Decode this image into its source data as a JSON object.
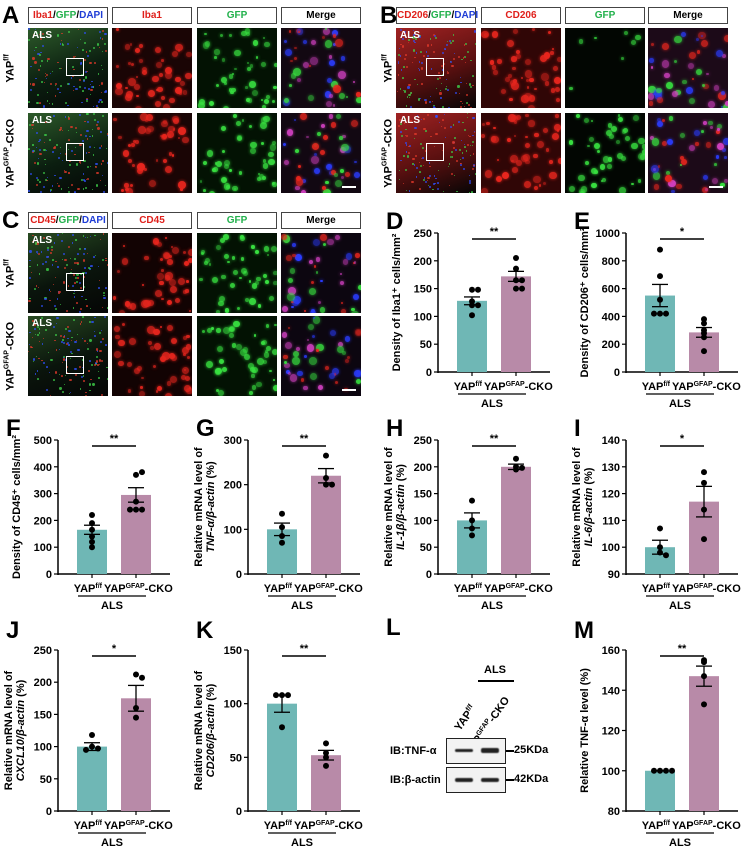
{
  "colors": {
    "wt_bar": "#6fb7b5",
    "ko_bar": "#b88aa8",
    "red": "#e0201b",
    "green": "#22b14c",
    "blue": "#1f3dd6"
  },
  "microscopy": [
    {
      "letter": "A",
      "headers": [
        [
          {
            "t": "Iba1",
            "c": "red"
          },
          {
            "t": "/",
            "c": "k"
          },
          {
            "t": "GFP",
            "c": "green"
          },
          {
            "t": "/",
            "c": "k"
          },
          {
            "t": "DAPI",
            "c": "blue"
          }
        ],
        [
          {
            "t": "Iba1",
            "c": "red"
          }
        ],
        [
          {
            "t": "GFP",
            "c": "green"
          }
        ],
        [
          {
            "t": "Merge",
            "c": "k"
          }
        ]
      ],
      "rows": [
        {
          "base": "YAP",
          "sup": "f/f",
          "suffix": "",
          "inset": "ALS"
        },
        {
          "base": "YAP",
          "sup": "GFAP",
          "suffix": "-CKO",
          "inset": "ALS"
        }
      ]
    },
    {
      "letter": "B",
      "headers": [
        [
          {
            "t": "CD206",
            "c": "red"
          },
          {
            "t": "/",
            "c": "k"
          },
          {
            "t": "GFP",
            "c": "green"
          },
          {
            "t": "/",
            "c": "k"
          },
          {
            "t": "DAPI",
            "c": "blue"
          }
        ],
        [
          {
            "t": "CD206",
            "c": "red"
          }
        ],
        [
          {
            "t": "GFP",
            "c": "green"
          }
        ],
        [
          {
            "t": "Merge",
            "c": "k"
          }
        ]
      ],
      "rows": [
        {
          "base": "YAP",
          "sup": "f/f",
          "suffix": "",
          "inset": "ALS"
        },
        {
          "base": "YAP",
          "sup": "GFAP",
          "suffix": "-CKO",
          "inset": "ALS"
        }
      ]
    },
    {
      "letter": "C",
      "headers": [
        [
          {
            "t": "CD45",
            "c": "red"
          },
          {
            "t": "/",
            "c": "k"
          },
          {
            "t": "GFP",
            "c": "green"
          },
          {
            "t": "/",
            "c": "k"
          },
          {
            "t": "DAPI",
            "c": "blue"
          }
        ],
        [
          {
            "t": "CD45",
            "c": "red"
          }
        ],
        [
          {
            "t": "GFP",
            "c": "green"
          }
        ],
        [
          {
            "t": "Merge",
            "c": "k"
          }
        ]
      ],
      "rows": [
        {
          "base": "YAP",
          "sup": "f/f",
          "suffix": "",
          "inset": "ALS"
        },
        {
          "base": "YAP",
          "sup": "GFAP",
          "suffix": "-CKO",
          "inset": "ALS"
        }
      ]
    }
  ],
  "chart_data": [
    {
      "letter": "D",
      "type": "bar",
      "ylabel": [
        [
          {
            "t": "Density of Iba1⁺ cells/mm²"
          }
        ]
      ],
      "ylim": [
        0,
        250
      ],
      "yticks": [
        0,
        50,
        100,
        150,
        200,
        250
      ],
      "sig": "**",
      "categories": [
        {
          "base": "YAP",
          "sup": "f/f",
          "suffix": ""
        },
        {
          "base": "YAP",
          "sup": "GFAP",
          "suffix": "-CKO"
        }
      ],
      "group_label": "ALS",
      "series": [
        {
          "mean": 128,
          "sem": 7,
          "points": [
            148,
            148,
            127,
            120,
            120,
            102
          ]
        },
        {
          "mean": 172,
          "sem": 9,
          "points": [
            205,
            186,
            165,
            150,
            150,
            165
          ]
        }
      ]
    },
    {
      "letter": "E",
      "type": "bar",
      "ylabel": [
        [
          {
            "t": "Density of CD206⁺ cells/mm²"
          }
        ]
      ],
      "ylim": [
        0,
        1000
      ],
      "yticks": [
        0,
        200,
        400,
        600,
        800,
        1000
      ],
      "sig": "*",
      "categories": [
        {
          "base": "YAP",
          "sup": "f/f",
          "suffix": ""
        },
        {
          "base": "YAP",
          "sup": "GFAP",
          "suffix": "-CKO"
        }
      ],
      "group_label": "ALS",
      "series": [
        {
          "mean": 550,
          "sem": 80,
          "points": [
            880,
            690,
            520,
            420,
            420,
            420
          ]
        },
        {
          "mean": 285,
          "sem": 35,
          "points": [
            380,
            350,
            300,
            280,
            250,
            150
          ]
        }
      ]
    },
    {
      "letter": "F",
      "type": "bar",
      "ylabel": [
        [
          {
            "t": "Density of CD45⁺ cells/mm²"
          }
        ]
      ],
      "ylim": [
        0,
        500
      ],
      "yticks": [
        0,
        100,
        200,
        300,
        400,
        500
      ],
      "sig": "**",
      "categories": [
        {
          "base": "YAP",
          "sup": "f/f",
          "suffix": ""
        },
        {
          "base": "YAP",
          "sup": "GFAP",
          "suffix": "-CKO"
        }
      ],
      "group_label": "ALS",
      "series": [
        {
          "mean": 165,
          "sem": 17,
          "points": [
            220,
            190,
            165,
            140,
            120,
            100
          ]
        },
        {
          "mean": 295,
          "sem": 27,
          "points": [
            370,
            380,
            270,
            240,
            240,
            240
          ]
        }
      ]
    },
    {
      "letter": "G",
      "type": "bar",
      "ylabel": [
        [
          {
            "t": "Relative mRNA level of"
          }
        ],
        [
          {
            "t": "TNF-α/β-actin",
            "i": true
          },
          {
            "t": " (%)"
          }
        ]
      ],
      "ylim": [
        0,
        300
      ],
      "yticks": [
        0,
        100,
        200,
        300
      ],
      "sig": "**",
      "categories": [
        {
          "base": "YAP",
          "sup": "f/f",
          "suffix": ""
        },
        {
          "base": "YAP",
          "sup": "GFAP",
          "suffix": "-CKO"
        }
      ],
      "group_label": "ALS",
      "series": [
        {
          "mean": 100,
          "sem": 14,
          "points": [
            135,
            105,
            85,
            70
          ]
        },
        {
          "mean": 220,
          "sem": 16,
          "points": [
            265,
            215,
            200,
            200
          ]
        }
      ]
    },
    {
      "letter": "H",
      "type": "bar",
      "ylabel": [
        [
          {
            "t": "Relative mRNA level of"
          }
        ],
        [
          {
            "t": "IL-1β/β-actin",
            "i": true
          },
          {
            "t": " (%)"
          }
        ]
      ],
      "ylim": [
        0,
        250
      ],
      "yticks": [
        0,
        50,
        100,
        150,
        200,
        250
      ],
      "sig": "**",
      "categories": [
        {
          "base": "YAP",
          "sup": "f/f",
          "suffix": ""
        },
        {
          "base": "YAP",
          "sup": "GFAP",
          "suffix": "-CKO"
        }
      ],
      "group_label": "ALS",
      "series": [
        {
          "mean": 100,
          "sem": 14,
          "points": [
            137,
            100,
            85,
            72
          ]
        },
        {
          "mean": 200,
          "sem": 5,
          "points": [
            215,
            200,
            198,
            195
          ]
        }
      ]
    },
    {
      "letter": "I",
      "type": "bar",
      "ylabel": [
        [
          {
            "t": "Relative mRNA level of"
          }
        ],
        [
          {
            "t": "IL-6/β-actin",
            "i": true
          },
          {
            "t": " (%)"
          }
        ]
      ],
      "ylim": [
        90,
        140
      ],
      "yticks": [
        90,
        100,
        110,
        120,
        130,
        140
      ],
      "sig": "*",
      "categories": [
        {
          "base": "YAP",
          "sup": "f/f",
          "suffix": ""
        },
        {
          "base": "YAP",
          "sup": "GFAP",
          "suffix": "-CKO"
        }
      ],
      "group_label": "ALS",
      "series": [
        {
          "mean": 100,
          "sem": 2.6,
          "points": [
            107,
            100,
            98,
            97
          ]
        },
        {
          "mean": 117,
          "sem": 5.7,
          "points": [
            128,
            124,
            114,
            103
          ]
        }
      ]
    },
    {
      "letter": "J",
      "type": "bar",
      "ylabel": [
        [
          {
            "t": "Relative mRNA level of"
          }
        ],
        [
          {
            "t": "CXCL10/β-actin",
            "i": true
          },
          {
            "t": " (%)"
          }
        ]
      ],
      "ylim": [
        0,
        250
      ],
      "yticks": [
        0,
        50,
        100,
        150,
        200,
        250
      ],
      "sig": "*",
      "categories": [
        {
          "base": "YAP",
          "sup": "f/f",
          "suffix": ""
        },
        {
          "base": "YAP",
          "sup": "GFAP",
          "suffix": "-CKO"
        }
      ],
      "group_label": "ALS",
      "series": [
        {
          "mean": 100,
          "sem": 6,
          "points": [
            118,
            100,
            97,
            95
          ]
        },
        {
          "mean": 175,
          "sem": 20,
          "points": [
            212,
            207,
            160,
            145
          ]
        }
      ]
    },
    {
      "letter": "K",
      "type": "bar",
      "ylabel": [
        [
          {
            "t": "Relative mRNA level of"
          }
        ],
        [
          {
            "t": "CD206/β-actin",
            "i": true
          },
          {
            "t": " (%)"
          }
        ]
      ],
      "ylim": [
        0,
        150
      ],
      "yticks": [
        0,
        50,
        100,
        150
      ],
      "sig": "**",
      "categories": [
        {
          "base": "YAP",
          "sup": "f/f",
          "suffix": ""
        },
        {
          "base": "YAP",
          "sup": "GFAP",
          "suffix": "-CKO"
        }
      ],
      "group_label": "ALS",
      "series": [
        {
          "mean": 100,
          "sem": 8,
          "points": [
            108,
            108,
            108,
            78
          ]
        },
        {
          "mean": 52,
          "sem": 4.5,
          "points": [
            63,
            54,
            50,
            42
          ]
        }
      ]
    },
    {
      "letter": "M",
      "type": "bar",
      "ylabel": [
        [
          {
            "t": "Relative TNF-α level (%)"
          }
        ]
      ],
      "ylim": [
        80,
        160
      ],
      "yticks": [
        80,
        100,
        120,
        140,
        160
      ],
      "sig": "**",
      "categories": [
        {
          "base": "YAP",
          "sup": "f/f",
          "suffix": ""
        },
        {
          "base": "YAP",
          "sup": "GFAP",
          "suffix": "-CKO"
        }
      ],
      "group_label": "ALS",
      "series": [
        {
          "mean": 100,
          "sem": 0,
          "points": [
            100,
            100,
            100,
            100
          ]
        },
        {
          "mean": 147,
          "sem": 5,
          "points": [
            155,
            154,
            147,
            133
          ]
        }
      ]
    }
  ],
  "western": {
    "letter": "L",
    "group_label": "ALS",
    "lanes": [
      {
        "base": "YAP",
        "sup": "f/f",
        "suffix": ""
      },
      {
        "base": "YAP",
        "sup": "GFAP",
        "suffix": "-CKO"
      }
    ],
    "blots": [
      {
        "label": "IB:TNF-α",
        "size": "25KDa"
      },
      {
        "label": "IB:β-actin",
        "size": "42KDa"
      }
    ]
  }
}
